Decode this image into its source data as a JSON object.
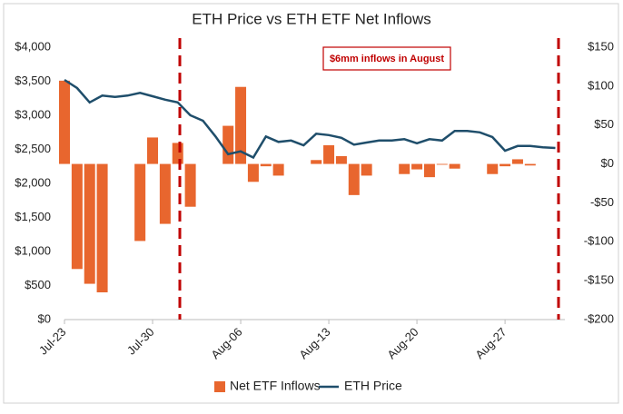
{
  "chart_data": {
    "type": "bar-line",
    "title": "ETH Price vs ETH ETF Net Inflows",
    "annotation": "$6mm inflows in August",
    "categories": [
      "Jul-23",
      null,
      null,
      null,
      null,
      null,
      null,
      "Jul-30",
      null,
      null,
      null,
      null,
      null,
      null,
      "Aug-06",
      null,
      null,
      null,
      null,
      null,
      null,
      "Aug-13",
      null,
      null,
      null,
      null,
      null,
      null,
      "Aug-20",
      null,
      null,
      null,
      null,
      null,
      null,
      "Aug-27",
      null,
      null,
      null,
      null
    ],
    "series": [
      {
        "name": "Net ETF Inflows",
        "color": "#e8662e",
        "axis": "y2",
        "values": [
          107,
          -135,
          -154,
          -165,
          null,
          null,
          -99,
          34,
          -77,
          27,
          -55,
          null,
          null,
          49,
          99,
          -23,
          -3,
          -15,
          null,
          null,
          5,
          24,
          10,
          -40,
          -15,
          null,
          null,
          -13,
          -7,
          -17,
          -1,
          -6,
          null,
          null,
          -13,
          -3,
          6,
          -2,
          null,
          null
        ]
      },
      {
        "name": "ETH Price",
        "color": "#1f4e6b",
        "axis": "y",
        "values": [
          3520,
          3400,
          3190,
          3290,
          3270,
          3290,
          3330,
          3280,
          3230,
          3190,
          3000,
          2920,
          2690,
          2430,
          2470,
          2380,
          2690,
          2610,
          2630,
          2560,
          2730,
          2710,
          2670,
          2570,
          2600,
          2630,
          2630,
          2650,
          2590,
          2650,
          2630,
          2770,
          2770,
          2750,
          2680,
          2480,
          2550,
          2550,
          2530,
          2520
        ]
      }
    ],
    "ylim": [
      0,
      4000
    ],
    "yticks": [
      {
        "value": 0,
        "label": "$0"
      },
      {
        "value": 500,
        "label": "$500"
      },
      {
        "value": 1000,
        "label": "$1,000"
      },
      {
        "value": 1500,
        "label": "$1,500"
      },
      {
        "value": 2000,
        "label": "$2,000"
      },
      {
        "value": 2500,
        "label": "$2,500"
      },
      {
        "value": 3000,
        "label": "$3,000"
      },
      {
        "value": 3500,
        "label": "$3,500"
      },
      {
        "value": 4000,
        "label": "$4,000"
      }
    ],
    "y2lim": [
      -200,
      150
    ],
    "y2ticks": [
      {
        "value": -200,
        "label": "-$200"
      },
      {
        "value": -150,
        "label": "-$150"
      },
      {
        "value": -100,
        "label": "-$100"
      },
      {
        "value": -50,
        "label": "-$50"
      },
      {
        "value": 0,
        "label": "$0"
      },
      {
        "value": 50,
        "label": "$50"
      },
      {
        "value": 100,
        "label": "$100"
      },
      {
        "value": 150,
        "label": "$150"
      }
    ],
    "legend": "bottom"
  }
}
